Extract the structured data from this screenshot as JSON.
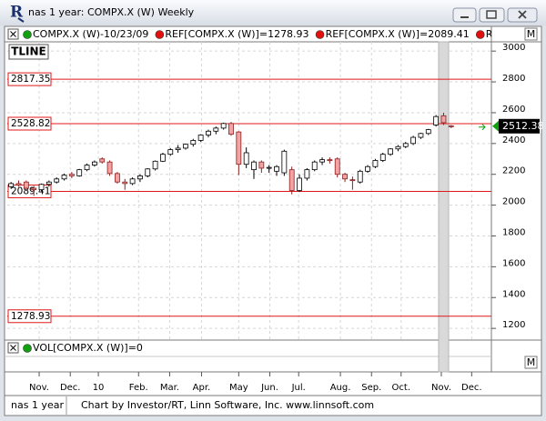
{
  "window": {
    "title": "nas 1 year: COMPX.X (W) Weekly",
    "footer_left": "nas 1 year",
    "footer_right": "Chart by Investor/RT, Linn Software, Inc. www.linnsoft.com"
  },
  "chart_data": {
    "type": "candlestick",
    "panel_label": "TLINE",
    "legend": [
      {
        "text": "COMPX.X (W)-10/23/09",
        "color": "#10a010"
      },
      {
        "text": "REF[COMPX.X (W)]=1278.93",
        "color": "#e01010"
      },
      {
        "text": "REF[COMPX.X (W)]=2089.41",
        "color": "#e01010"
      },
      {
        "text": "REF[COMPX.X (W",
        "color": "#e01010"
      }
    ],
    "open": [
      2120,
      2140,
      2150,
      2110,
      2100,
      2135,
      2150,
      2170,
      2200,
      2190,
      2230,
      2260,
      2300,
      2280,
      2205,
      2150,
      2140,
      2170,
      2190,
      2235,
      2285,
      2330,
      2360,
      2370,
      2395,
      2420,
      2455,
      2480,
      2500,
      2530,
      2475,
      2265,
      2230,
      2280,
      2240,
      2220,
      2210,
      2230,
      2095,
      2175,
      2230,
      2280,
      2295,
      2300,
      2200,
      2165,
      2150,
      2220,
      2250,
      2290,
      2330,
      2365,
      2380,
      2400,
      2440,
      2465,
      2520,
      2580,
      2515
    ],
    "high": [
      2150,
      2160,
      2160,
      2125,
      2140,
      2160,
      2180,
      2205,
      2215,
      2235,
      2270,
      2290,
      2310,
      2290,
      2215,
      2170,
      2180,
      2200,
      2240,
      2290,
      2340,
      2370,
      2390,
      2400,
      2430,
      2460,
      2490,
      2510,
      2535,
      2540,
      2480,
      2375,
      2290,
      2290,
      2260,
      2260,
      2360,
      2250,
      2200,
      2240,
      2290,
      2310,
      2310,
      2310,
      2210,
      2185,
      2230,
      2260,
      2300,
      2340,
      2370,
      2390,
      2410,
      2450,
      2470,
      2495,
      2585,
      2600,
      2520
    ],
    "low": [
      2105,
      2120,
      2100,
      2060,
      2090,
      2120,
      2140,
      2160,
      2175,
      2185,
      2220,
      2250,
      2270,
      2190,
      2140,
      2100,
      2130,
      2150,
      2180,
      2225,
      2280,
      2320,
      2340,
      2360,
      2380,
      2410,
      2440,
      2460,
      2490,
      2450,
      2195,
      2240,
      2170,
      2210,
      2210,
      2190,
      2190,
      2070,
      2085,
      2160,
      2220,
      2260,
      2270,
      2180,
      2150,
      2100,
      2140,
      2210,
      2240,
      2280,
      2320,
      2350,
      2370,
      2390,
      2430,
      2455,
      2510,
      2520,
      2500
    ],
    "close": [
      2140,
      2130,
      2110,
      2100,
      2135,
      2150,
      2170,
      2195,
      2190,
      2230,
      2260,
      2280,
      2280,
      2205,
      2150,
      2140,
      2170,
      2190,
      2235,
      2285,
      2330,
      2360,
      2370,
      2395,
      2420,
      2455,
      2480,
      2500,
      2530,
      2460,
      2265,
      2340,
      2280,
      2240,
      2245,
      2250,
      2350,
      2095,
      2175,
      2230,
      2280,
      2295,
      2290,
      2200,
      2170,
      2160,
      2220,
      2250,
      2290,
      2330,
      2365,
      2380,
      2400,
      2440,
      2465,
      2490,
      2575,
      2535,
      2512.38
    ],
    "up_color": "#ffffff",
    "down_color": "#f2a3a3",
    "reference_lines": [
      2817.35,
      2528.82,
      2089.41,
      1278.93
    ],
    "reference_color": "#e01818",
    "last_price_color": "#000000",
    "ylim": [
      1130,
      3060
    ],
    "yticks": [
      1200,
      1400,
      1600,
      1800,
      2000,
      2200,
      2400,
      2600,
      2800,
      3000
    ],
    "xlim": [
      -0.5,
      63.3
    ],
    "xticks": [
      {
        "value": 3.7,
        "label": "Nov."
      },
      {
        "value": 7.8,
        "label": "Dec."
      },
      {
        "value": 11.5,
        "label": "10"
      },
      {
        "value": 16.8,
        "label": "Feb."
      },
      {
        "value": 20.9,
        "label": "Mar."
      },
      {
        "value": 25.1,
        "label": "Apr."
      },
      {
        "value": 30.0,
        "label": "May"
      },
      {
        "value": 34.1,
        "label": "Jun."
      },
      {
        "value": 37.9,
        "label": "Jul."
      },
      {
        "value": 43.4,
        "label": "Aug."
      },
      {
        "value": 47.5,
        "label": "Sep."
      },
      {
        "value": 51.4,
        "label": "Oct."
      },
      {
        "value": 56.7,
        "label": "Nov."
      },
      {
        "value": 60.7,
        "label": "Dec."
      }
    ],
    "grid": true,
    "volume_legend": {
      "text": "VOL[COMPX.X (W)]=0",
      "color": "#10a010"
    },
    "scale_marker": "M"
  }
}
